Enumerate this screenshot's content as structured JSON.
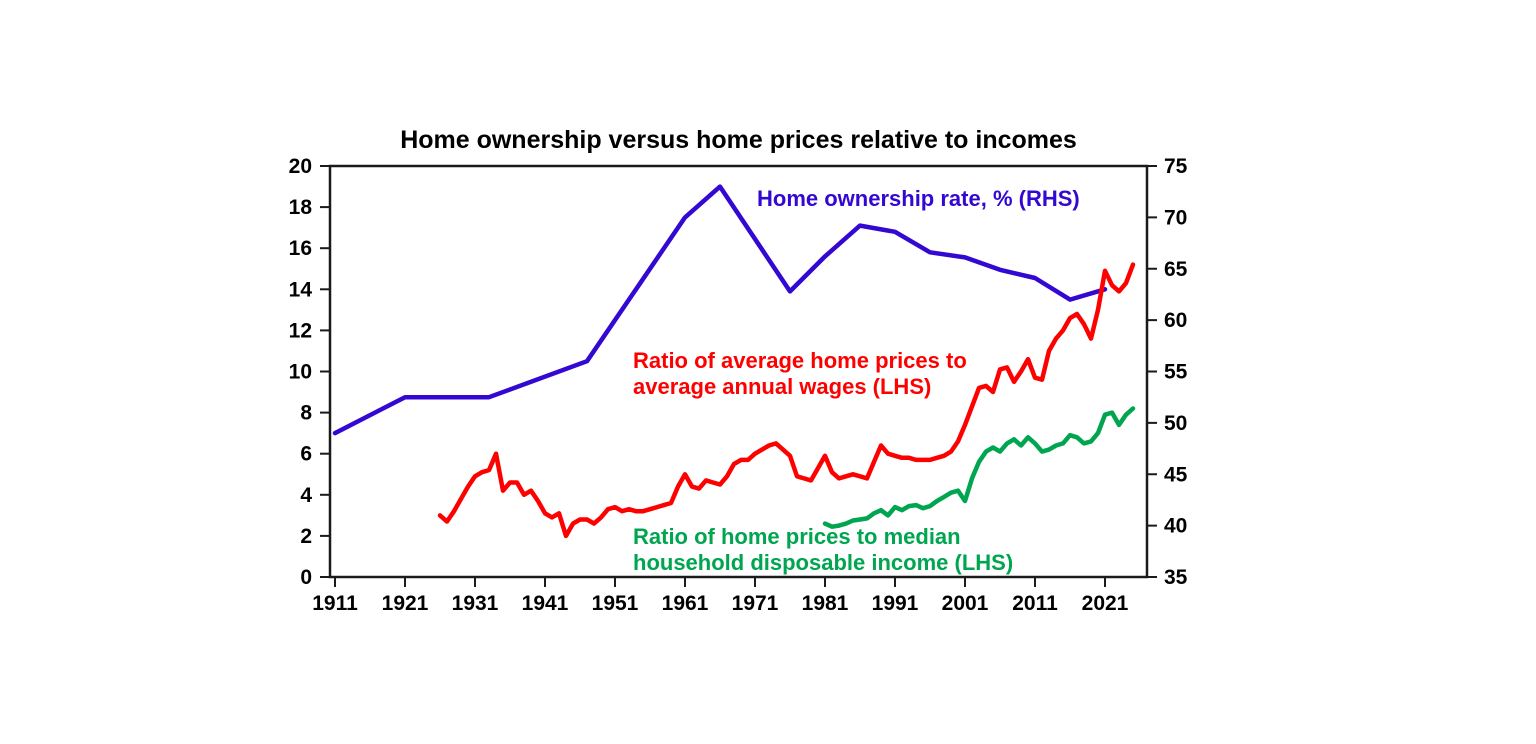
{
  "page": {
    "background": "#ffffff"
  },
  "chart_data": {
    "type": "line",
    "title": "Home ownership versus home prices relative to incomes",
    "grid": false,
    "legend_position": "inline-labels-on-plot",
    "axis_color": "#1a1a1a",
    "text_color": "#000000",
    "x_axis": {
      "tick_years": [
        1911,
        1921,
        1931,
        1941,
        1951,
        1961,
        1971,
        1981,
        1991,
        2001,
        2011,
        2021
      ],
      "tick_labels": [
        "1911",
        "1921",
        "1931",
        "1941",
        "1951",
        "1961",
        "1971",
        "1981",
        "1991",
        "2001",
        "2011",
        "2021"
      ]
    },
    "left_axis": {
      "min": 0,
      "max": 20,
      "step": 2,
      "ticks": [
        0,
        2,
        4,
        6,
        8,
        10,
        12,
        14,
        16,
        18,
        20
      ]
    },
    "right_axis": {
      "min": 35,
      "max": 75,
      "step": 5,
      "ticks": [
        35,
        40,
        45,
        50,
        55,
        60,
        65,
        70,
        75
      ]
    },
    "series": [
      {
        "id": "home_ownership_rate",
        "label": "Home ownership rate, % (RHS)",
        "label_lines": [
          "Home ownership rate, % (RHS)"
        ],
        "axis": "right",
        "color": "#3208d2",
        "x": [
          1911,
          1921,
          1933,
          1947,
          1954,
          1961,
          1966,
          1976,
          1981,
          1986,
          1991,
          1996,
          2001,
          2006,
          2011,
          2016,
          2021
        ],
        "values": [
          49,
          52.5,
          52.5,
          56,
          63,
          70,
          73,
          62.8,
          66.2,
          69.2,
          68.6,
          66.6,
          66.1,
          64.9,
          64.1,
          62,
          63
        ]
      },
      {
        "id": "price_to_wage_ratio",
        "label": "Ratio of average home prices to average annual wages (LHS)",
        "label_lines": [
          "Ratio of average home prices to",
          "average annual wages (LHS)"
        ],
        "axis": "left",
        "color": "#ff0000",
        "x_start": 1926,
        "values": [
          3.0,
          2.7,
          3.2,
          3.8,
          4.4,
          4.9,
          5.1,
          5.2,
          6.0,
          4.2,
          4.6,
          4.6,
          4.0,
          4.2,
          3.7,
          3.1,
          2.9,
          3.1,
          2.0,
          2.6,
          2.8,
          2.8,
          2.6,
          2.9,
          3.3,
          3.4,
          3.2,
          3.3,
          3.2,
          3.2,
          3.3,
          3.4,
          3.5,
          3.6,
          4.4,
          5.0,
          4.4,
          4.3,
          4.7,
          4.6,
          4.5,
          4.9,
          5.5,
          5.7,
          5.7,
          6.0,
          6.2,
          6.4,
          6.5,
          6.2,
          5.9,
          4.9,
          4.8,
          4.7,
          5.3,
          5.9,
          5.1,
          4.8,
          4.9,
          5.0,
          4.9,
          4.8,
          5.6,
          6.4,
          6.0,
          5.9,
          5.8,
          5.8,
          5.7,
          5.7,
          5.7,
          5.8,
          5.9,
          6.1,
          6.6,
          7.4,
          8.3,
          9.2,
          9.3,
          9.0,
          10.1,
          10.2,
          9.5,
          10.0,
          10.6,
          9.7,
          9.6,
          11.0,
          11.6,
          12.0,
          12.6,
          12.8,
          12.3,
          11.6,
          13.0,
          14.9,
          14.2,
          13.9,
          14.3,
          15.2
        ]
      },
      {
        "id": "price_to_household_income_ratio",
        "label": "Ratio of home prices to median household disposable income (LHS)",
        "label_lines": [
          "Ratio of home prices to median",
          "household disposable income (LHS)"
        ],
        "axis": "left",
        "color": "#00a550",
        "x_start": 1981,
        "values": [
          2.6,
          2.45,
          2.5,
          2.6,
          2.75,
          2.8,
          2.85,
          3.1,
          3.25,
          3.0,
          3.4,
          3.25,
          3.45,
          3.5,
          3.35,
          3.45,
          3.7,
          3.9,
          4.1,
          4.2,
          3.7,
          4.8,
          5.6,
          6.1,
          6.3,
          6.1,
          6.5,
          6.7,
          6.4,
          6.8,
          6.5,
          6.1,
          6.2,
          6.4,
          6.5,
          6.9,
          6.8,
          6.5,
          6.6,
          7.0,
          7.9,
          8.0,
          7.4,
          7.9,
          8.2
        ]
      }
    ]
  }
}
